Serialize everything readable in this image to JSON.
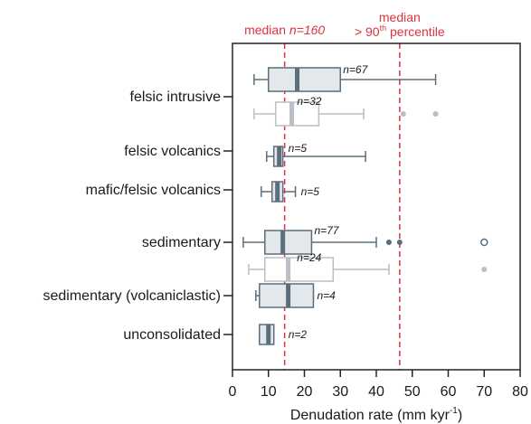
{
  "chart_data": {
    "type": "boxplot",
    "orientation": "horizontal",
    "xlabel": "Denudation rate (mm kyr",
    "xlabel_sup": "-1",
    "xlabel_close": ")",
    "xlim": [
      0,
      80
    ],
    "xticks": [
      0,
      10,
      20,
      30,
      40,
      50,
      60,
      70,
      80
    ],
    "grid": false,
    "colors": {
      "dark": "#5b6e7c",
      "light": "#b9bfc4",
      "dark_fill": "#e3e8ec",
      "light_fill": "#ffffff",
      "ref": "#d9333f",
      "axis": "#222222"
    },
    "categories": [
      "felsic intrusive",
      "felsic volcanics",
      "mafic/felsic volcanics",
      "sedimentary",
      "sedimentary (volcaniclastic)",
      "unconsolidated"
    ],
    "reference_lines": [
      {
        "x": 14.5,
        "label_parts": [
          "median ",
          "n=160"
        ],
        "label_parts_italic": [
          false,
          true
        ]
      },
      {
        "x": 46.5,
        "label_line1": "median",
        "label_line2_pre": "> 90",
        "label_line2_sup": "th",
        "label_line2_post": " percentile"
      }
    ],
    "boxes": [
      {
        "category": "felsic intrusive",
        "style": "dark",
        "whisker_low": 6,
        "q1": 10,
        "median": 18,
        "q3": 30,
        "whisker_high": 56.5,
        "n_label": "n=67",
        "outliers": []
      },
      {
        "category": "felsic intrusive",
        "style": "light",
        "whisker_low": 6,
        "q1": 12,
        "median": 16.5,
        "q3": 24,
        "whisker_high": 36.5,
        "n_label": "n=32",
        "outliers": [
          {
            "x": 47.5,
            "fill": "solid"
          },
          {
            "x": 56.5,
            "fill": "solid"
          }
        ]
      },
      {
        "category": "felsic volcanics",
        "style": "dark",
        "whisker_low": 9.5,
        "q1": 11.5,
        "median": 13,
        "q3": 14,
        "whisker_high": 37,
        "n_label": "n=5",
        "outliers": []
      },
      {
        "category": "mafic/felsic volcanics",
        "style": "dark",
        "whisker_low": 8,
        "q1": 11,
        "median": 12.5,
        "q3": 14,
        "whisker_high": 17.5,
        "n_label": "n=5",
        "outliers": []
      },
      {
        "category": "sedimentary",
        "style": "dark",
        "whisker_low": 3,
        "q1": 9,
        "median": 14,
        "q3": 22,
        "whisker_high": 40,
        "n_label": "n=77",
        "outliers": [
          {
            "x": 43.5,
            "fill": "solid"
          },
          {
            "x": 46.5,
            "fill": "solid"
          },
          {
            "x": 70,
            "fill": "open"
          }
        ]
      },
      {
        "category": "sedimentary",
        "style": "light",
        "whisker_low": 4.5,
        "q1": 9,
        "median": 15.5,
        "q3": 28,
        "whisker_high": 43.5,
        "n_label": "n=24",
        "outliers": [
          {
            "x": 70,
            "fill": "solid"
          }
        ]
      },
      {
        "category": "sedimentary (volcaniclastic)",
        "style": "dark",
        "whisker_low": 6.5,
        "q1": 7.5,
        "median": 15.5,
        "q3": 22.5,
        "whisker_high": 22.5,
        "n_label": "n=4",
        "outliers": []
      },
      {
        "category": "unconsolidated",
        "style": "dark",
        "whisker_low": 7.5,
        "q1": 7.5,
        "median": 10,
        "q3": 11.5,
        "whisker_high": 11.5,
        "n_label": "n=2",
        "outliers": []
      }
    ]
  }
}
